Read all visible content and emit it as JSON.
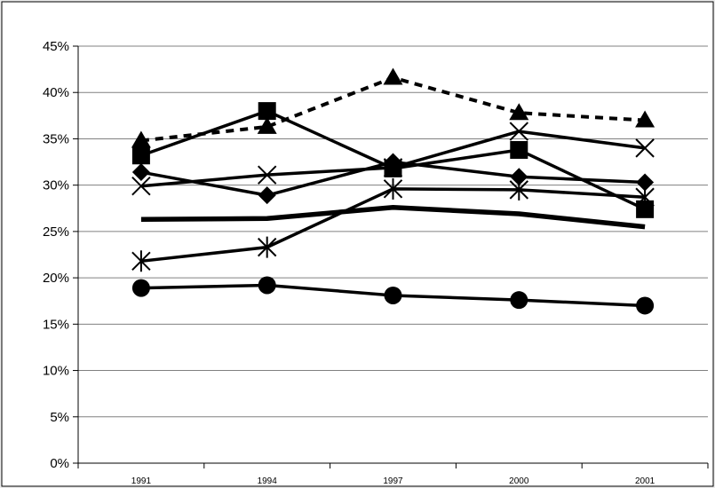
{
  "chart_data": {
    "type": "line",
    "title": "",
    "xlabel": "",
    "ylabel": "",
    "categories": [
      "1991",
      "1994",
      "1997",
      "2000",
      "2001"
    ],
    "y_ticks": [
      "0%",
      "5%",
      "10%",
      "15%",
      "20%",
      "25%",
      "30%",
      "35%",
      "40%",
      "45%"
    ],
    "ylim": [
      0,
      45
    ],
    "grid": true,
    "legend": "none",
    "colors": {
      "background": "#ececec",
      "plot_area": "#ffffff",
      "grid": "#808080",
      "series": "#000000"
    },
    "series": [
      {
        "marker": "triangle",
        "style": "dashed",
        "width": 4,
        "values": [
          34.8,
          36.3,
          41.6,
          37.8,
          37.0
        ]
      },
      {
        "marker": "square",
        "style": "solid",
        "width": 3.5,
        "values": [
          33.2,
          38.0,
          31.8,
          33.8,
          27.4
        ]
      },
      {
        "marker": "x",
        "style": "solid",
        "width": 3.5,
        "values": [
          29.9,
          31.1,
          31.9,
          35.8,
          34.0
        ]
      },
      {
        "marker": "diamond",
        "style": "solid",
        "width": 3.5,
        "values": [
          31.4,
          28.9,
          32.5,
          30.9,
          30.3
        ]
      },
      {
        "marker": "asterisk",
        "style": "solid",
        "width": 3.5,
        "values": [
          21.8,
          23.3,
          29.6,
          29.5,
          28.7
        ]
      },
      {
        "marker": "none",
        "style": "solid",
        "width": 5.5,
        "values": [
          26.3,
          26.4,
          27.6,
          26.9,
          25.5
        ]
      },
      {
        "marker": "circle",
        "style": "solid",
        "width": 3.5,
        "values": [
          18.9,
          19.2,
          18.1,
          17.6,
          17.0
        ]
      }
    ]
  }
}
